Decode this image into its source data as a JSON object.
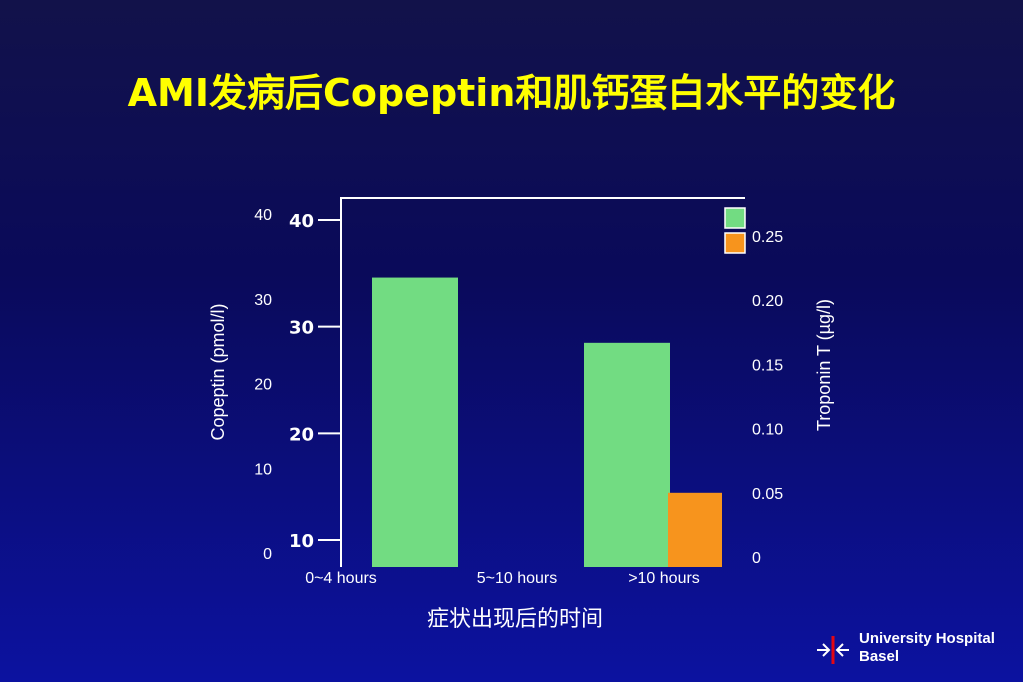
{
  "slide": {
    "title": "AMI发病后Copeptin和肌钙蛋白水平的变化"
  },
  "chart_data": {
    "type": "bar",
    "categories": [
      "0~4 hours",
      "5~10 hours",
      ">10 hours"
    ],
    "xlabel": "症状出现后的时间",
    "y_left": {
      "label": "Copeptin (pmol/l)",
      "ticks": [
        "0",
        "10",
        "20",
        "30",
        "40"
      ],
      "inner_ticks": [
        "10",
        "20",
        "30",
        "40"
      ],
      "range": [
        0,
        40
      ]
    },
    "y_right": {
      "label": "Troponin T (µg/l)",
      "ticks": [
        "0",
        "0.05",
        "0.10",
        "0.15",
        "0.20",
        "0.25"
      ],
      "range": [
        0,
        0.25
      ]
    },
    "series": [
      {
        "axis": "left",
        "color": "#72dc82",
        "values": [
          32.5,
          null,
          24.8
        ]
      },
      {
        "axis": "right",
        "color": "#f7941d",
        "values": [
          null,
          null,
          0.05
        ]
      }
    ],
    "legend_swatches": [
      "#72dc82",
      "#f7941d"
    ],
    "grid": false
  },
  "logo": {
    "line1": "University Hospital",
    "line2": "Basel"
  }
}
